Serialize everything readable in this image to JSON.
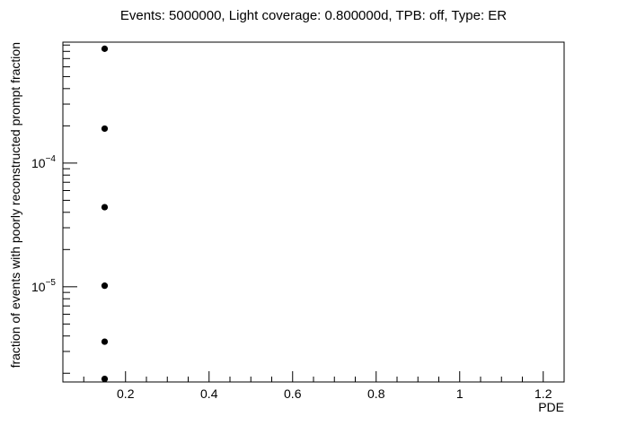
{
  "chart_data": {
    "type": "scatter",
    "title": "Events: 5000000, Light coverage: 0.800000d, TPB: off, Type: ER",
    "xlabel": "PDE",
    "ylabel": "fraction of events with poorly reconstructed prompt fraction",
    "x_ticks": [
      {
        "value": 0.2,
        "label": "0.2"
      },
      {
        "value": 0.4,
        "label": "0.4"
      },
      {
        "value": 0.6,
        "label": "0.6"
      },
      {
        "value": 0.8,
        "label": "0.8"
      },
      {
        "value": 1.0,
        "label": "1"
      },
      {
        "value": 1.2,
        "label": "1.2"
      }
    ],
    "y_ticks": [
      {
        "value": 0.0001,
        "base": "10",
        "exp": "−4"
      },
      {
        "value": 1e-05,
        "base": "10",
        "exp": "−5"
      }
    ],
    "xlim": [
      0.05,
      1.25
    ],
    "ylim": [
      1.7e-06,
      0.00095
    ],
    "yscale": "log",
    "grid": false,
    "legend": "none",
    "marker_color": "#000000",
    "points": [
      {
        "x": 0.15,
        "y": 0.00084
      },
      {
        "x": 0.15,
        "y": 0.00019
      },
      {
        "x": 0.15,
        "y": 4.4e-05
      },
      {
        "x": 0.15,
        "y": 1.02e-05
      },
      {
        "x": 0.15,
        "y": 3.6e-06
      },
      {
        "x": 0.15,
        "y": 1.8e-06
      }
    ]
  }
}
